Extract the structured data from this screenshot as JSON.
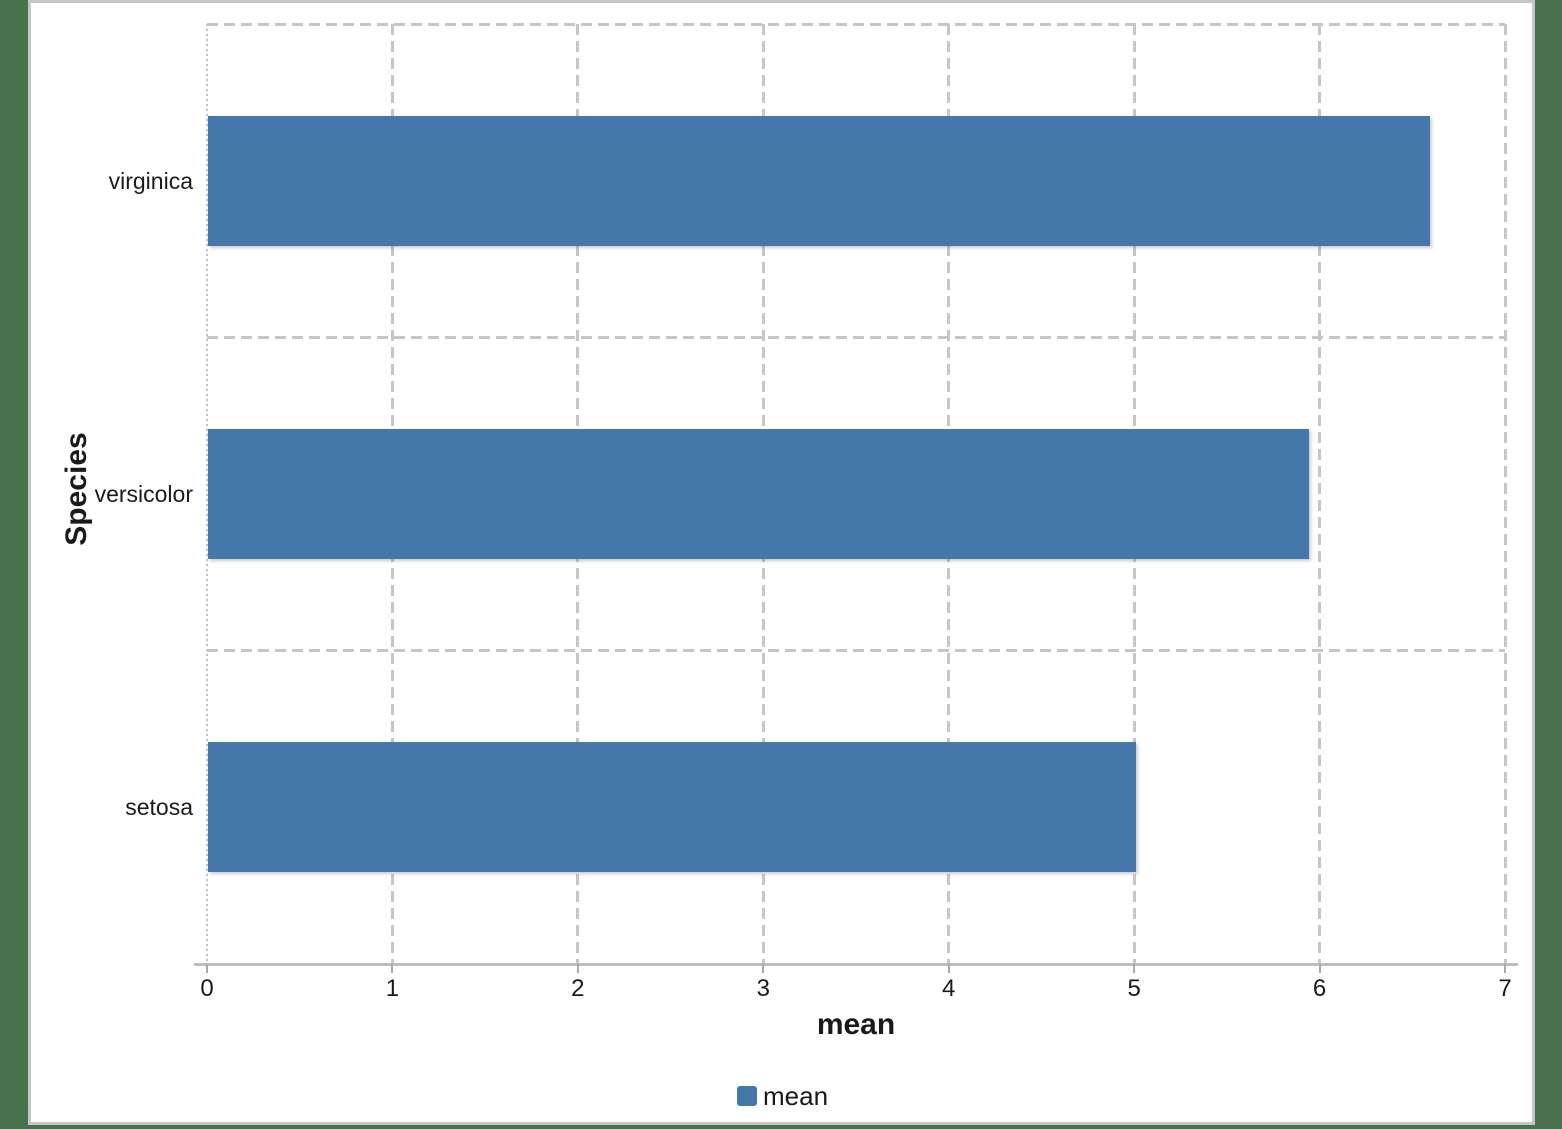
{
  "chart_data": {
    "type": "bar",
    "orientation": "horizontal",
    "title": "",
    "xlabel": "mean",
    "ylabel": "Species",
    "categories": [
      "virginica",
      "versicolor",
      "setosa"
    ],
    "series": [
      {
        "name": "mean",
        "values": [
          6.588,
          5.936,
          5.006
        ]
      }
    ],
    "xlim": [
      0,
      7
    ],
    "xticks": [
      "0",
      "1",
      "2",
      "3",
      "4",
      "5",
      "6",
      "7"
    ],
    "grid": "dashed gray major gridlines; vertical at each unit, horizontal at category band boundaries, dotted line at x=0",
    "legend_position": "bottom-center",
    "legend_entries": [
      "mean"
    ]
  },
  "colors": {
    "bar": "#4577ab",
    "page_background": "#48714e",
    "panel_background": "#ffffff",
    "panel_border": "#c6c6c6",
    "gridline": "#c6c6c6",
    "axis_line": "#bdbdbd",
    "tick": "#a8a8a8",
    "text": "#1a1a1a"
  }
}
